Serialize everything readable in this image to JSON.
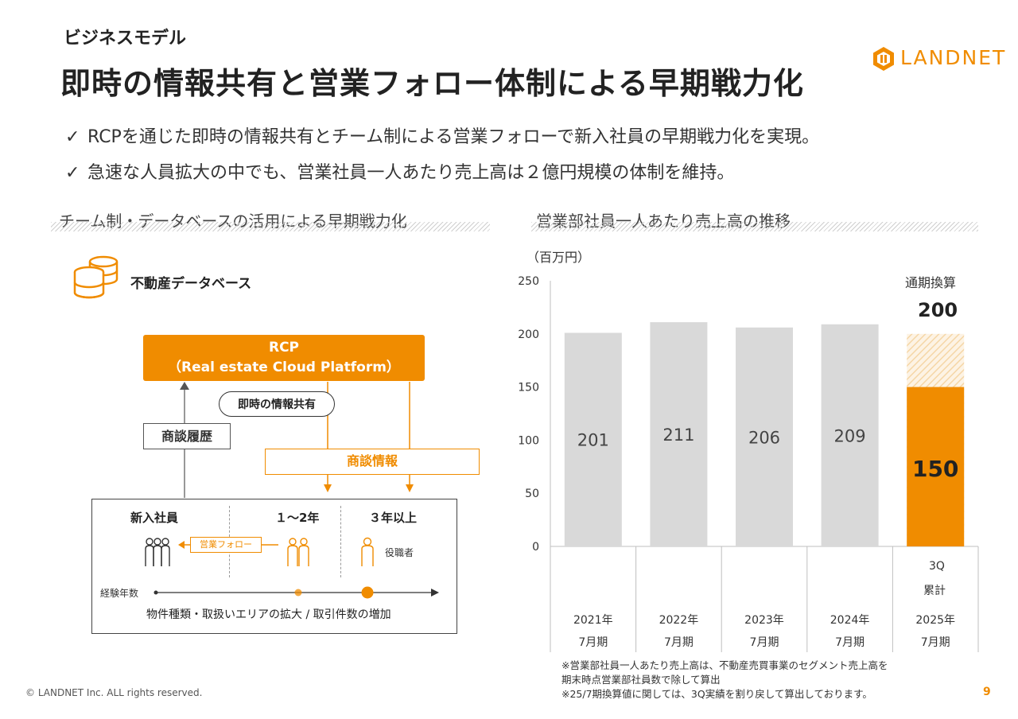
{
  "header": {
    "subtitle": "ビジネスモデル",
    "title": "即時の情報共有と営業フォロー体制による早期戦力化"
  },
  "logo": {
    "text": "LANDNET",
    "icon": "landnet-logo-icon"
  },
  "bullets": [
    "RCPを通じた即時の情報共有とチーム制による営業フォローで新入社員の早期戦力化を実現。",
    "急速な人員拡大の中でも、営業社員一人あたり売上高は２億円規模の体制を維持。"
  ],
  "left_panel": {
    "heading": "チーム制・データベースの活用による早期戦力化",
    "database_label": "不動産データベース",
    "rcp_line1": "RCP",
    "rcp_line2": "（Real estate Cloud Platform）",
    "info_share": "即時の情報共有",
    "history_label": "商談履歴",
    "deal_info_label": "商談情報",
    "team": {
      "col1": "新入社員",
      "col2": "１～2年",
      "col3": "３年以上",
      "follow": "営業フォロー",
      "manager": "役職者",
      "experience": "経験年数",
      "expansion": "物件種類・取扱いエリアの拡大 / 取引件数の増加"
    }
  },
  "right_panel": {
    "heading": "営業部社員一人あたり売上高の推移",
    "unit": "（百万円）",
    "annualized_label": "通期換算",
    "annualized_value": "200",
    "q3_label_1": "3Q",
    "q3_label_2": "累計"
  },
  "chart_data": {
    "type": "bar",
    "categories": [
      "2021年\n7月期",
      "2022年\n7月期",
      "2023年\n7月期",
      "2024年\n7月期",
      "2025年\n7月期"
    ],
    "category_lines": [
      [
        "2021年",
        "7月期"
      ],
      [
        "2022年",
        "7月期"
      ],
      [
        "2023年",
        "7月期"
      ],
      [
        "2024年",
        "7月期"
      ],
      [
        "2025年",
        "7月期"
      ]
    ],
    "values": [
      201,
      211,
      206,
      209,
      150
    ],
    "value_labels": [
      "201",
      "211",
      "206",
      "209",
      "150"
    ],
    "annualized": {
      "category_index": 4,
      "value": 200
    },
    "yticks": [
      "250",
      "200",
      "150",
      "100",
      "50",
      "0"
    ],
    "ylim": [
      0,
      250
    ],
    "colors": {
      "actual": "#d9d9d9",
      "highlight": "#f08c00",
      "annualized_hatch": "#f5d6a6"
    }
  },
  "notes": [
    "※営業部社員一人あたり売上高は、不動産売買事業のセグメント売上高を",
    "期末時点営業部社員数で除して算出",
    "※25/7期換算値に関しては、3Q実績を割り戻して算出しております。"
  ],
  "footer": {
    "copyright": "© LANDNET Inc. ALL rights reserved.",
    "page": "9"
  }
}
